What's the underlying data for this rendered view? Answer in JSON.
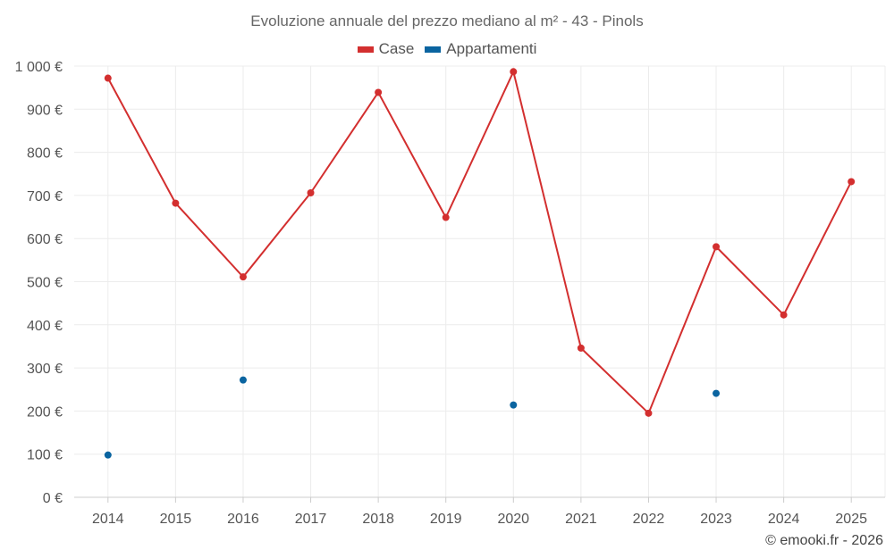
{
  "chart_data": {
    "type": "line",
    "title": "Evoluzione annuale del prezzo mediano al m² - 43 - Pinols",
    "xlabel": "",
    "ylabel": "",
    "categories": [
      "2014",
      "2015",
      "2016",
      "2017",
      "2018",
      "2019",
      "2020",
      "2021",
      "2022",
      "2023",
      "2024",
      "2025"
    ],
    "ylim": [
      0,
      1000
    ],
    "y_ticks": [
      0,
      100,
      200,
      300,
      400,
      500,
      600,
      700,
      800,
      900,
      1000
    ],
    "y_tick_labels": [
      "0 €",
      "100 €",
      "200 €",
      "300 €",
      "400 €",
      "500 €",
      "600 €",
      "700 €",
      "800 €",
      "900 €",
      "1 000 €"
    ],
    "grid": true,
    "legend_position": "top-center",
    "series": [
      {
        "name": "Case",
        "color": "#d32f2f",
        "values": [
          972,
          682,
          511,
          706,
          939,
          649,
          987,
          346,
          195,
          581,
          423,
          732
        ]
      },
      {
        "name": "Appartamenti",
        "color": "#0a64a0",
        "values": [
          98,
          null,
          272,
          null,
          null,
          null,
          214,
          null,
          null,
          241,
          null,
          null
        ]
      }
    ]
  },
  "credit": "© emooki.fr - 2026"
}
